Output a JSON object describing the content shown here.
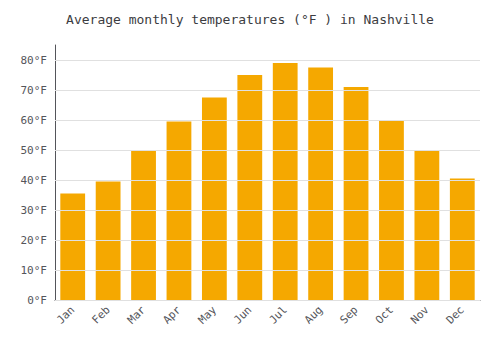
{
  "chart_data": {
    "type": "bar",
    "title": "Average monthly temperatures (°F ) in Nashville",
    "categories": [
      "Jan",
      "Feb",
      "Mar",
      "Apr",
      "May",
      "Jun",
      "Jul",
      "Aug",
      "Sep",
      "Oct",
      "Nov",
      "Dec"
    ],
    "values": [
      35.5,
      39.5,
      50.0,
      59.5,
      67.5,
      75.0,
      79.0,
      77.5,
      71.0,
      60.0,
      50.0,
      40.5
    ],
    "color": "#F5A800",
    "ylim": [
      0,
      85
    ],
    "yticks": [
      {
        "value": 0,
        "label": "0°F"
      },
      {
        "value": 10,
        "label": "10°F"
      },
      {
        "value": 20,
        "label": "20°F"
      },
      {
        "value": 30,
        "label": "30°F"
      },
      {
        "value": 40,
        "label": "40°F"
      },
      {
        "value": 50,
        "label": "50°F"
      },
      {
        "value": 60,
        "label": "60°F"
      },
      {
        "value": 70,
        "label": "70°F"
      },
      {
        "value": 80,
        "label": "80°F"
      }
    ],
    "grid": true
  }
}
